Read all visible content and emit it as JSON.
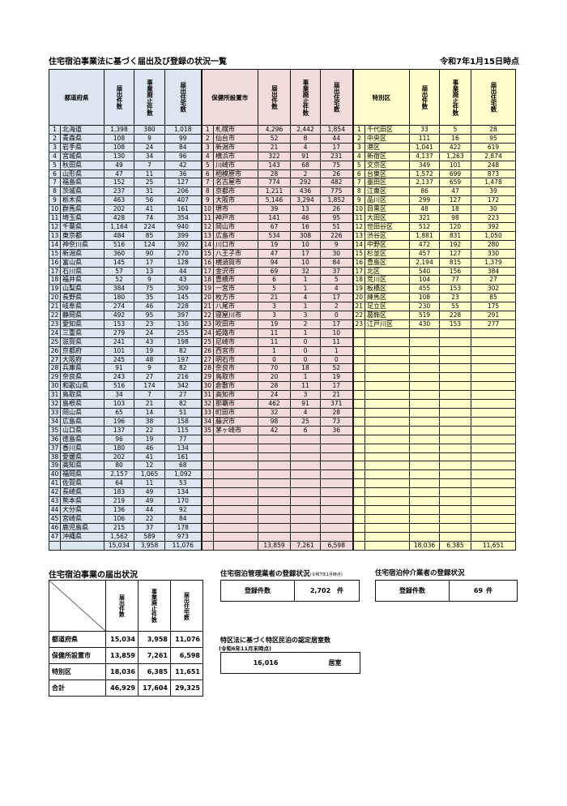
{
  "title": "住宅宿泊事業法に基づく届出及び登録の状況一覧",
  "as_of": "令和7年1月15日時点",
  "headers": {
    "count": "届出件数",
    "closed": "事業廃止件数",
    "units": "届出住宅数"
  },
  "prefectures": {
    "label": "都道府県",
    "rows": [
      [
        "1",
        "北海道",
        "1,398",
        "380",
        "1,018"
      ],
      [
        "2",
        "青森県",
        "108",
        "9",
        "99"
      ],
      [
        "3",
        "岩手県",
        "108",
        "24",
        "84"
      ],
      [
        "4",
        "宮城県",
        "130",
        "34",
        "96"
      ],
      [
        "5",
        "秋田県",
        "49",
        "7",
        "42"
      ],
      [
        "6",
        "山形県",
        "47",
        "11",
        "36"
      ],
      [
        "7",
        "福島県",
        "152",
        "25",
        "127"
      ],
      [
        "8",
        "茨城県",
        "237",
        "31",
        "206"
      ],
      [
        "9",
        "栃木県",
        "463",
        "56",
        "407"
      ],
      [
        "10",
        "群馬県",
        "202",
        "41",
        "161"
      ],
      [
        "11",
        "埼玉県",
        "428",
        "74",
        "354"
      ],
      [
        "12",
        "千葉県",
        "1,164",
        "224",
        "940"
      ],
      [
        "13",
        "東京都",
        "484",
        "85",
        "399"
      ],
      [
        "14",
        "神奈川県",
        "516",
        "124",
        "392"
      ],
      [
        "15",
        "新潟県",
        "360",
        "90",
        "270"
      ],
      [
        "16",
        "富山県",
        "145",
        "17",
        "128"
      ],
      [
        "17",
        "石川県",
        "57",
        "13",
        "44"
      ],
      [
        "18",
        "福井県",
        "52",
        "9",
        "43"
      ],
      [
        "19",
        "山梨県",
        "384",
        "75",
        "309"
      ],
      [
        "20",
        "長野県",
        "180",
        "35",
        "145"
      ],
      [
        "21",
        "岐阜県",
        "274",
        "46",
        "228"
      ],
      [
        "22",
        "静岡県",
        "492",
        "95",
        "397"
      ],
      [
        "23",
        "愛知県",
        "153",
        "23",
        "130"
      ],
      [
        "24",
        "三重県",
        "279",
        "24",
        "255"
      ],
      [
        "25",
        "滋賀県",
        "241",
        "43",
        "198"
      ],
      [
        "26",
        "京都府",
        "101",
        "19",
        "82"
      ],
      [
        "27",
        "大阪府",
        "245",
        "48",
        "197"
      ],
      [
        "28",
        "兵庫県",
        "91",
        "9",
        "82"
      ],
      [
        "29",
        "奈良県",
        "243",
        "27",
        "216"
      ],
      [
        "30",
        "和歌山県",
        "516",
        "174",
        "342"
      ],
      [
        "31",
        "鳥取県",
        "34",
        "7",
        "27"
      ],
      [
        "32",
        "島根県",
        "103",
        "21",
        "82"
      ],
      [
        "33",
        "岡山県",
        "65",
        "14",
        "51"
      ],
      [
        "34",
        "広島県",
        "196",
        "38",
        "158"
      ],
      [
        "35",
        "山口県",
        "137",
        "22",
        "115"
      ],
      [
        "36",
        "徳島県",
        "96",
        "19",
        "77"
      ],
      [
        "37",
        "香川県",
        "180",
        "46",
        "134"
      ],
      [
        "38",
        "愛媛県",
        "202",
        "41",
        "161"
      ],
      [
        "39",
        "高知県",
        "80",
        "12",
        "68"
      ],
      [
        "40",
        "福岡県",
        "2,157",
        "1,065",
        "1,092"
      ],
      [
        "41",
        "佐賀県",
        "64",
        "11",
        "53"
      ],
      [
        "42",
        "長崎県",
        "183",
        "49",
        "134"
      ],
      [
        "43",
        "熊本県",
        "219",
        "49",
        "170"
      ],
      [
        "44",
        "大分県",
        "136",
        "44",
        "92"
      ],
      [
        "45",
        "宮崎県",
        "106",
        "22",
        "84"
      ],
      [
        "46",
        "鹿児島県",
        "215",
        "37",
        "178"
      ],
      [
        "47",
        "沖縄県",
        "1,562",
        "589",
        "973"
      ]
    ],
    "total": [
      "15,034",
      "3,958",
      "11,076"
    ]
  },
  "cities": {
    "label": "保健所設置市",
    "rows": [
      [
        "1",
        "札幌市",
        "4,296",
        "2,442",
        "1,854"
      ],
      [
        "2",
        "仙台市",
        "52",
        "8",
        "44"
      ],
      [
        "3",
        "新潟市",
        "21",
        "4",
        "17"
      ],
      [
        "4",
        "横浜市",
        "322",
        "91",
        "231"
      ],
      [
        "5",
        "川崎市",
        "143",
        "68",
        "75"
      ],
      [
        "6",
        "相模原市",
        "28",
        "2",
        "26"
      ],
      [
        "7",
        "名古屋市",
        "774",
        "292",
        "482"
      ],
      [
        "8",
        "京都市",
        "1,211",
        "436",
        "775"
      ],
      [
        "9",
        "大阪市",
        "5,146",
        "3,294",
        "1,852"
      ],
      [
        "10",
        "堺市",
        "39",
        "13",
        "26"
      ],
      [
        "11",
        "神戸市",
        "141",
        "46",
        "95"
      ],
      [
        "12",
        "岡山市",
        "67",
        "16",
        "51"
      ],
      [
        "13",
        "広島市",
        "534",
        "308",
        "226"
      ],
      [
        "14",
        "川口市",
        "19",
        "10",
        "9"
      ],
      [
        "15",
        "八王子市",
        "47",
        "17",
        "30"
      ],
      [
        "16",
        "横須賀市",
        "94",
        "10",
        "84"
      ],
      [
        "17",
        "金沢市",
        "69",
        "32",
        "37"
      ],
      [
        "18",
        "豊橋市",
        "6",
        "1",
        "5"
      ],
      [
        "19",
        "一宮市",
        "5",
        "1",
        "4"
      ],
      [
        "20",
        "枚方市",
        "21",
        "4",
        "17"
      ],
      [
        "21",
        "八尾市",
        "3",
        "1",
        "2"
      ],
      [
        "22",
        "寝屋川市",
        "3",
        "3",
        "0"
      ],
      [
        "23",
        "吹田市",
        "19",
        "2",
        "17"
      ],
      [
        "24",
        "姫路市",
        "11",
        "1",
        "10"
      ],
      [
        "25",
        "尼崎市",
        "11",
        "0",
        "11"
      ],
      [
        "26",
        "西宮市",
        "1",
        "0",
        "1"
      ],
      [
        "27",
        "明石市",
        "0",
        "0",
        "0"
      ],
      [
        "28",
        "奈良市",
        "70",
        "18",
        "52"
      ],
      [
        "29",
        "鳥取市",
        "20",
        "1",
        "19"
      ],
      [
        "30",
        "倉敷市",
        "28",
        "11",
        "17"
      ],
      [
        "31",
        "高知市",
        "24",
        "3",
        "21"
      ],
      [
        "32",
        "那覇市",
        "462",
        "91",
        "371"
      ],
      [
        "33",
        "町田市",
        "32",
        "4",
        "28"
      ],
      [
        "34",
        "藤沢市",
        "98",
        "25",
        "73"
      ],
      [
        "35",
        "茅ヶ崎市",
        "42",
        "6",
        "36"
      ]
    ],
    "total": [
      "13,859",
      "7,261",
      "6,598"
    ]
  },
  "wards": {
    "label": "特別区",
    "rows": [
      [
        "1",
        "千代田区",
        "33",
        "5",
        "28"
      ],
      [
        "2",
        "中央区",
        "111",
        "16",
        "95"
      ],
      [
        "3",
        "港区",
        "1,041",
        "422",
        "619"
      ],
      [
        "4",
        "新宿区",
        "4,137",
        "1,263",
        "2,874"
      ],
      [
        "5",
        "文京区",
        "349",
        "101",
        "248"
      ],
      [
        "6",
        "台東区",
        "1,572",
        "699",
        "873"
      ],
      [
        "7",
        "墨田区",
        "2,137",
        "659",
        "1,478"
      ],
      [
        "8",
        "江東区",
        "86",
        "47",
        "39"
      ],
      [
        "9",
        "品川区",
        "299",
        "127",
        "172"
      ],
      [
        "10",
        "目黒区",
        "48",
        "18",
        "30"
      ],
      [
        "11",
        "大田区",
        "321",
        "98",
        "223"
      ],
      [
        "12",
        "世田谷区",
        "512",
        "120",
        "392"
      ],
      [
        "13",
        "渋谷区",
        "1,881",
        "831",
        "1,050"
      ],
      [
        "14",
        "中野区",
        "472",
        "192",
        "280"
      ],
      [
        "15",
        "杉並区",
        "457",
        "127",
        "330"
      ],
      [
        "16",
        "豊島区",
        "2,194",
        "815",
        "1,379"
      ],
      [
        "17",
        "北区",
        "540",
        "156",
        "384"
      ],
      [
        "18",
        "荒川区",
        "104",
        "77",
        "27"
      ],
      [
        "19",
        "板橋区",
        "455",
        "153",
        "302"
      ],
      [
        "20",
        "練馬区",
        "108",
        "23",
        "85"
      ],
      [
        "21",
        "足立区",
        "230",
        "55",
        "175"
      ],
      [
        "22",
        "葛飾区",
        "519",
        "228",
        "291"
      ],
      [
        "23",
        "江戸川区",
        "430",
        "153",
        "277"
      ]
    ],
    "total": [
      "18,036",
      "6,385",
      "11,651"
    ]
  },
  "summary": {
    "title": "住宅宿泊事業の届出状況",
    "rows": [
      [
        "都道府県",
        "15,034",
        "3,958",
        "11,076"
      ],
      [
        "保健所設置市",
        "13,859",
        "7,261",
        "6,598"
      ],
      [
        "特別区",
        "18,036",
        "6,385",
        "11,651"
      ],
      [
        "合計",
        "46,929",
        "17,604",
        "29,325"
      ]
    ]
  },
  "managers": {
    "title": "住宅宿泊管理業者の登録状況",
    "note": "(令和7年1月時点)",
    "label": "登録件数",
    "value": "2,702",
    "unit": "件"
  },
  "brokers": {
    "title": "住宅宿泊仲介業者の登録状況",
    "label": "登録件数",
    "value": "69",
    "unit": "件"
  },
  "tokku": {
    "title": "特区法に基づく特区民泊の認定居室数",
    "note": "(令和6年11月末時点)",
    "value": "16,016",
    "unit": "居室"
  },
  "colors": {
    "prefecture": "#dce6f1",
    "city": "#f2dcdb",
    "ward": "#ffffcc"
  }
}
